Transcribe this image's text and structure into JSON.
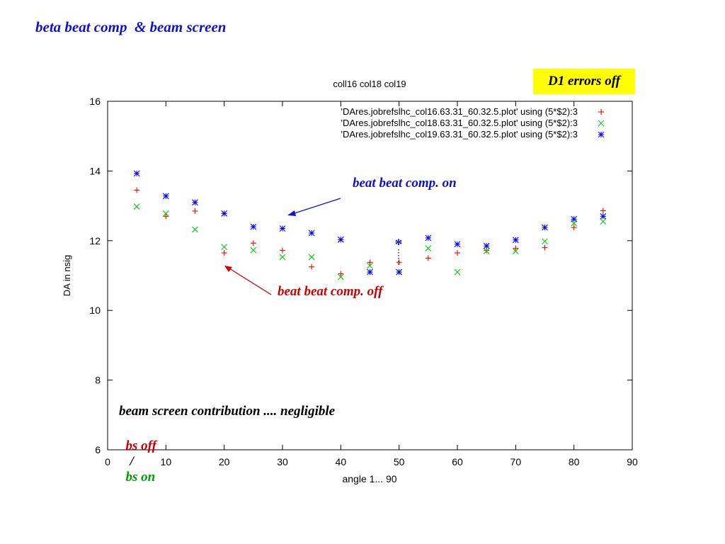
{
  "slide": {
    "title": "beta beat comp  & beam screen"
  },
  "annotations": {
    "d1_errors": "D1 errors off",
    "beat_on": "beat beat comp. on",
    "beat_off": "beat beat comp. off",
    "bs_contribution": "beam screen contribution .... negligible",
    "bs_off": "bs off",
    "separator": "/",
    "bs_on": "bs on",
    "marker_star": "*"
  },
  "colors": {
    "title": "#1010d0",
    "series_red": "#ff0000",
    "series_green": "#00cc00",
    "series_blue": "#0000ff",
    "annotation_red": "#cc0000",
    "annotation_blue": "#1010d0",
    "annotation_green": "#00a000",
    "highlight_box": "#ffff00"
  },
  "chart_data": {
    "type": "scatter",
    "title": "coll16 col18 col19",
    "xlabel": "angle 1... 90",
    "ylabel": "DA in nsig",
    "xlim": [
      0,
      90
    ],
    "ylim": [
      6,
      16
    ],
    "xticks": [
      0,
      10,
      20,
      30,
      40,
      50,
      60,
      70,
      80,
      90
    ],
    "yticks": [
      6,
      8,
      10,
      12,
      14,
      16
    ],
    "grid": false,
    "legend_position": "top-right",
    "series": [
      {
        "name": "'DAres.jobrefslhc_col16.63.31_60.32.5.plot' using (5*$2):3",
        "marker": "plus",
        "color": "#ff0000",
        "x": [
          5,
          10,
          15,
          20,
          25,
          30,
          35,
          40,
          45,
          50,
          55,
          60,
          65,
          70,
          75,
          80,
          85
        ],
        "y": [
          13.45,
          12.7,
          12.85,
          11.65,
          11.93,
          11.72,
          11.25,
          11.05,
          11.38,
          11.38,
          11.5,
          11.65,
          11.72,
          11.78,
          11.8,
          12.38,
          12.86
        ]
      },
      {
        "name": "'DAres.jobrefslhc_col18.63.31_60.32.5.plot' using (5*$2):3",
        "marker": "cross",
        "color": "#00cc00",
        "x": [
          5,
          10,
          15,
          20,
          25,
          30,
          35,
          40,
          45,
          50,
          55,
          60,
          65,
          70,
          75,
          80,
          85
        ],
        "y": [
          12.98,
          12.78,
          12.32,
          11.82,
          11.73,
          11.53,
          11.53,
          10.96,
          11.28,
          11.1,
          11.78,
          11.1,
          11.7,
          11.7,
          11.98,
          12.5,
          12.55
        ]
      },
      {
        "name": "'DAres.jobrefslhc_col19.63.31_60.32.5.plot' using (5*$2):3",
        "marker": "star",
        "color": "#0000ff",
        "x": [
          5,
          10,
          15,
          20,
          25,
          30,
          35,
          40,
          45,
          50,
          55,
          60,
          65,
          70,
          75,
          80,
          85
        ],
        "y": [
          13.93,
          13.28,
          13.1,
          12.78,
          12.4,
          12.35,
          12.22,
          12.03,
          11.1,
          11.1,
          12.08,
          11.9,
          11.85,
          12.02,
          12.38,
          12.62,
          12.7
        ]
      }
    ]
  }
}
